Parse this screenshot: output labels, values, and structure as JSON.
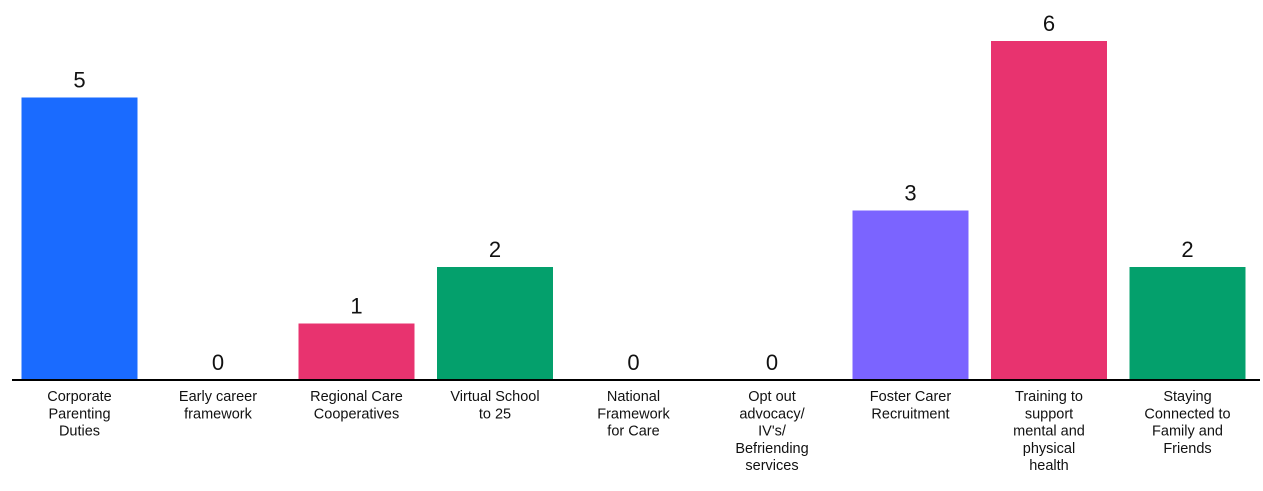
{
  "chart_data": {
    "type": "bar",
    "categories": [
      [
        "Corporate",
        "Parenting",
        "Duties"
      ],
      [
        "Early career",
        "framework"
      ],
      [
        "Regional Care",
        "Cooperatives"
      ],
      [
        "Virtual School",
        "to 25"
      ],
      [
        "National",
        "Framework",
        "for Care"
      ],
      [
        "Opt out",
        "advocacy/",
        "IV's/",
        "Befriending",
        "services"
      ],
      [
        "Foster Carer",
        "Recruitment"
      ],
      [
        "Training to",
        "support",
        "mental and",
        "physical",
        "health"
      ],
      [
        "Staying",
        "Connected to",
        "Family and",
        "Friends"
      ]
    ],
    "values": [
      5,
      0,
      1,
      2,
      0,
      0,
      3,
      6,
      2
    ],
    "value_labels": [
      "5",
      "0",
      "1",
      "2",
      "0",
      "0",
      "3",
      "6",
      "2"
    ],
    "colors": [
      "#1a6bff",
      "#1a6bff",
      "#e8336f",
      "#04a06c",
      "#1a6bff",
      "#1a6bff",
      "#7b64ff",
      "#e8336f",
      "#04a06c"
    ],
    "ylim": [
      0,
      6
    ],
    "grid": false,
    "legend": "none",
    "axis_color": "#000000",
    "title": "",
    "xlabel": "",
    "ylabel": ""
  }
}
